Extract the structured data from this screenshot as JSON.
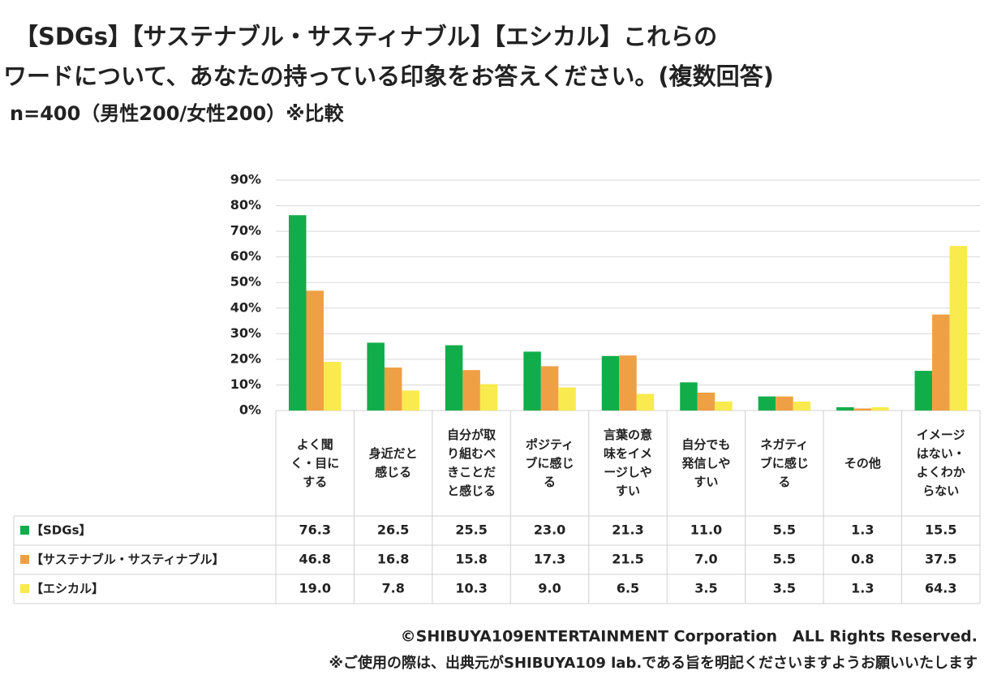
{
  "chart_data": {
    "type": "bar",
    "title": [
      "【SDGs】【サステナブル・サスティナブル】【エシカル】これらの",
      "ワードについて、あなたの持っている印象をお答えください。(複数回答)"
    ],
    "subtitle": "n=400（男性200/女性200）※比較",
    "categories": [
      "よく聞く・目にする",
      "身近だと感じる",
      "自分が取り組むべきことだと感じる",
      "ポジティブに感じる",
      "言葉の意味をイメージしやすい",
      "自分でも発信しやすい",
      "ネガティブに感じる",
      "その他",
      "イメージはない・よくわからない"
    ],
    "series": [
      {
        "name": "【SDGs】",
        "color": "#12ad4b",
        "values": [
          76.3,
          26.5,
          25.5,
          23.0,
          21.3,
          11.0,
          5.5,
          1.3,
          15.5
        ],
        "value_labels": [
          "76.3",
          "26.5",
          "25.5",
          "23.0",
          "21.3",
          "11.0",
          "5.5",
          "1.3",
          "15.5"
        ]
      },
      {
        "name": "【サステナブル・サスティナブル】",
        "color": "#f0a044",
        "values": [
          46.8,
          16.8,
          15.8,
          17.3,
          21.5,
          7.0,
          5.5,
          0.8,
          37.5
        ],
        "value_labels": [
          "46.8",
          "16.8",
          "15.8",
          "17.3",
          "21.5",
          "7.0",
          "5.5",
          "0.8",
          "37.5"
        ]
      },
      {
        "name": "【エシカル】",
        "color": "#f8ea4f",
        "values": [
          19.0,
          7.8,
          10.3,
          9.0,
          6.5,
          3.5,
          3.5,
          1.3,
          64.3
        ],
        "value_labels": [
          "19.0",
          "7.8",
          "10.3",
          "9.0",
          "6.5",
          "3.5",
          "3.5",
          "1.3",
          "64.3"
        ]
      }
    ],
    "ylim": [
      0,
      90
    ],
    "yticks": [
      {
        "value": 0,
        "label": "0%"
      },
      {
        "value": 10,
        "label": "10%"
      },
      {
        "value": 20,
        "label": "20%"
      },
      {
        "value": 30,
        "label": "30%"
      },
      {
        "value": 40,
        "label": "40%"
      },
      {
        "value": 50,
        "label": "50%"
      },
      {
        "value": 60,
        "label": "60%"
      },
      {
        "value": 70,
        "label": "70%"
      },
      {
        "value": 80,
        "label": "80%"
      },
      {
        "value": 90,
        "label": "90%"
      }
    ],
    "grid": true,
    "copyright": "©SHIBUYA109ENTERTAINMENT Corporation　ALL Rights Reserved.",
    "note": "※ご使用の際は、出典元がSHIBUYA109 lab.である旨を明記くださいますようお願いいたします"
  }
}
